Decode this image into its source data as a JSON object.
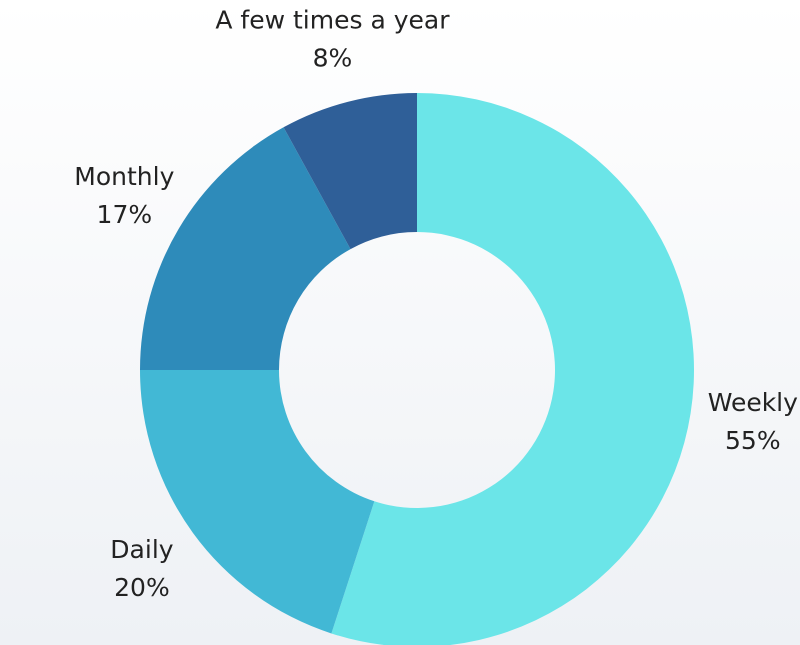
{
  "chart_data": {
    "type": "donut",
    "categories": [
      "Weekly",
      "Daily",
      "Monthly",
      "A few times a year"
    ],
    "values": [
      55,
      20,
      17,
      8
    ],
    "value_labels": [
      "55%",
      "20%",
      "17%",
      "8%"
    ],
    "colors": [
      "#6be5e8",
      "#42b8d5",
      "#2e8bba",
      "#2f5f98"
    ]
  }
}
